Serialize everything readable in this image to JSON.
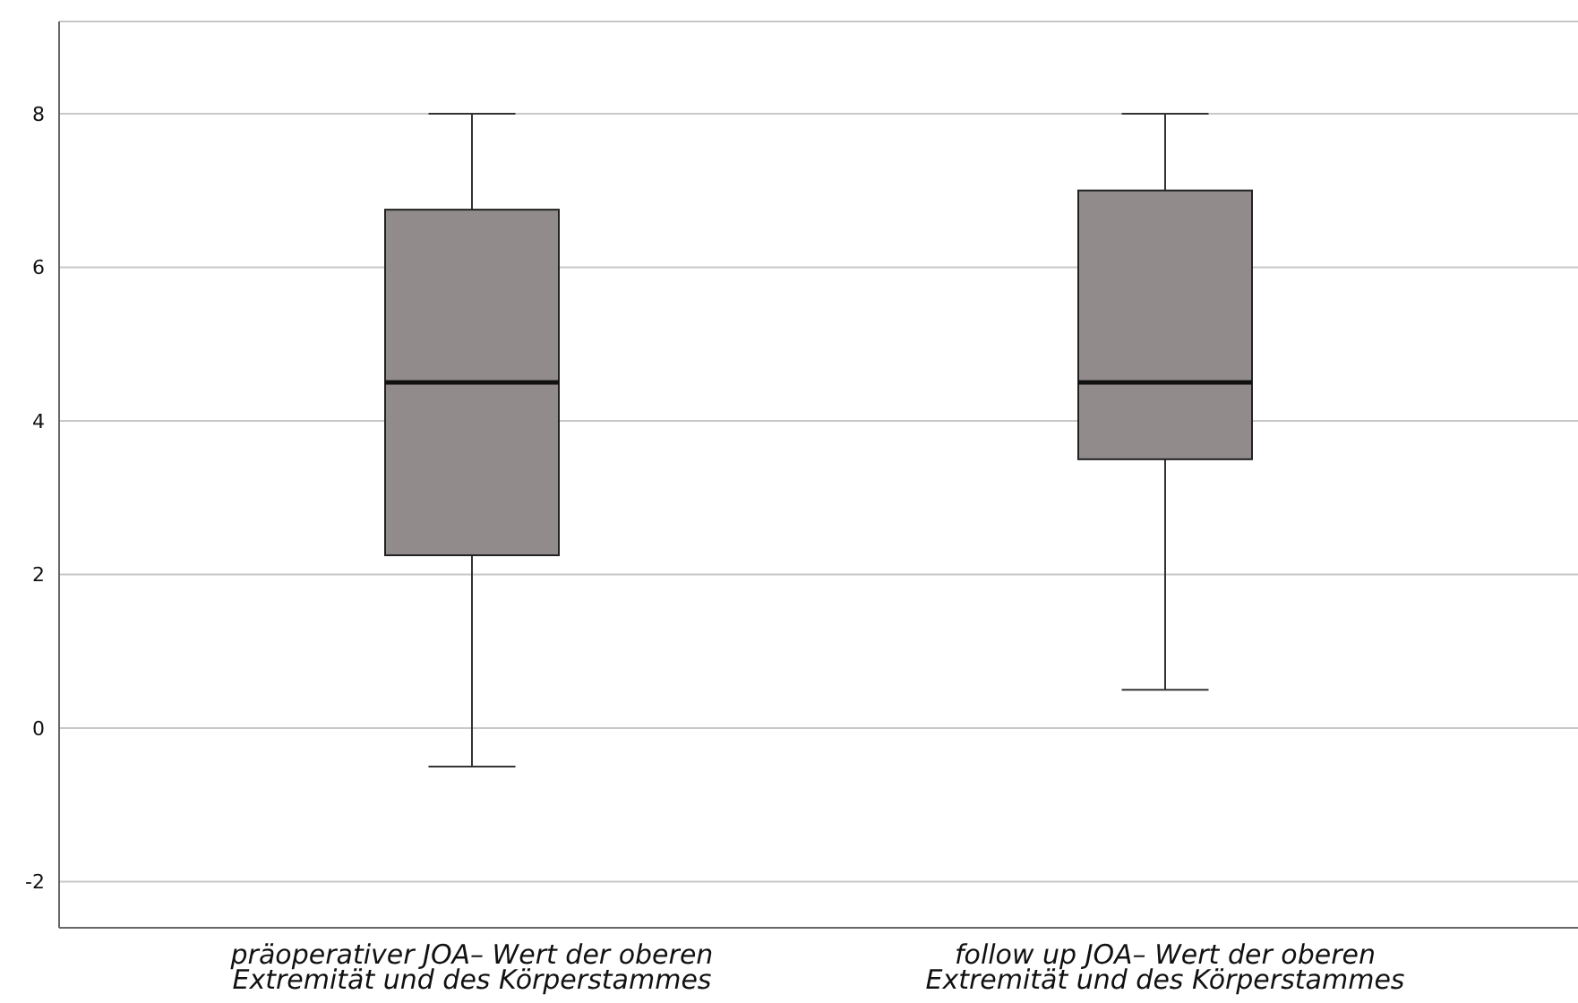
{
  "chart_data": {
    "type": "box",
    "categories": [
      "präoperativer JOA– Wert der oberen Extremität und des Körperstammes",
      "follow up JOA– Wert der oberen Extremität und des Körperstammes"
    ],
    "boxes": [
      {
        "low": -0.5,
        "q1": 2.25,
        "median": 4.5,
        "q3": 6.75,
        "high": 8
      },
      {
        "low": 0.5,
        "q1": 3.5,
        "median": 4.5,
        "q3": 7,
        "high": 8
      }
    ],
    "color": "#918c8b",
    "ylim": [
      -2.6,
      9.2
    ],
    "yticks": [
      -2,
      0,
      2,
      4,
      6,
      8
    ],
    "grid": "y"
  }
}
